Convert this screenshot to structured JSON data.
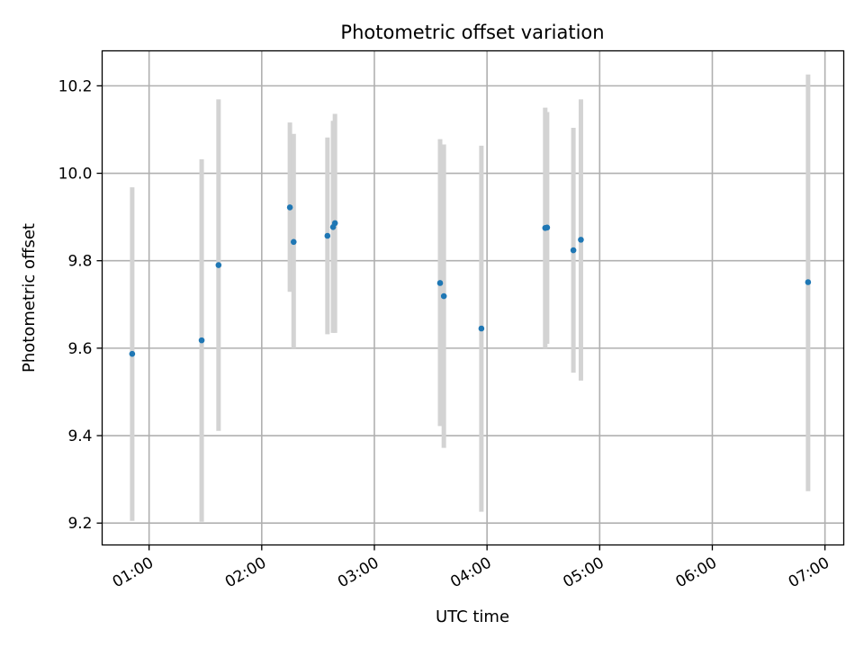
{
  "chart_data": {
    "type": "scatter",
    "title": "Photometric offset variation",
    "xlabel": "UTC time",
    "ylabel": "Photometric offset",
    "grid": true,
    "xlim": [
      "00:35",
      "07:10"
    ],
    "ylim": [
      9.15,
      10.28
    ],
    "x_ticks": [
      "01:00",
      "02:00",
      "03:00",
      "04:00",
      "05:00",
      "06:00",
      "07:00"
    ],
    "y_ticks": [
      9.2,
      9.4,
      9.6,
      9.8,
      10.0,
      10.2
    ],
    "y_tick_labels": [
      "9.2",
      "9.4",
      "9.6",
      "9.8",
      "10.0",
      "10.2"
    ],
    "colors": {
      "point": "#1f77b4",
      "errorbar": "#d3d3d3",
      "grid": "#b0b0b0"
    },
    "series": [
      {
        "points": [
          {
            "x": "00:51",
            "y": 9.587,
            "lo": 9.205,
            "hi": 9.968
          },
          {
            "x": "01:28",
            "y": 9.618,
            "lo": 9.203,
            "hi": 10.032
          },
          {
            "x": "01:37",
            "y": 9.79,
            "lo": 9.411,
            "hi": 10.169
          },
          {
            "x": "02:15",
            "y": 9.922,
            "lo": 9.729,
            "hi": 10.116
          },
          {
            "x": "02:17",
            "y": 9.843,
            "lo": 9.6,
            "hi": 10.09
          },
          {
            "x": "02:35",
            "y": 9.857,
            "lo": 9.632,
            "hi": 10.082
          },
          {
            "x": "02:38",
            "y": 9.877,
            "lo": 9.635,
            "hi": 10.12
          },
          {
            "x": "02:39",
            "y": 9.886,
            "lo": 9.635,
            "hi": 10.136
          },
          {
            "x": "03:35",
            "y": 9.749,
            "lo": 9.422,
            "hi": 10.078
          },
          {
            "x": "03:37",
            "y": 9.719,
            "lo": 9.372,
            "hi": 10.066
          },
          {
            "x": "03:57",
            "y": 9.645,
            "lo": 9.226,
            "hi": 10.063
          },
          {
            "x": "04:31",
            "y": 9.875,
            "lo": 9.6,
            "hi": 10.15
          },
          {
            "x": "04:32",
            "y": 9.876,
            "lo": 9.61,
            "hi": 10.14
          },
          {
            "x": "04:46",
            "y": 9.824,
            "lo": 9.544,
            "hi": 10.104
          },
          {
            "x": "04:50",
            "y": 9.848,
            "lo": 9.526,
            "hi": 10.169
          },
          {
            "x": "06:51",
            "y": 9.751,
            "lo": 9.273,
            "hi": 10.226
          }
        ]
      }
    ]
  }
}
